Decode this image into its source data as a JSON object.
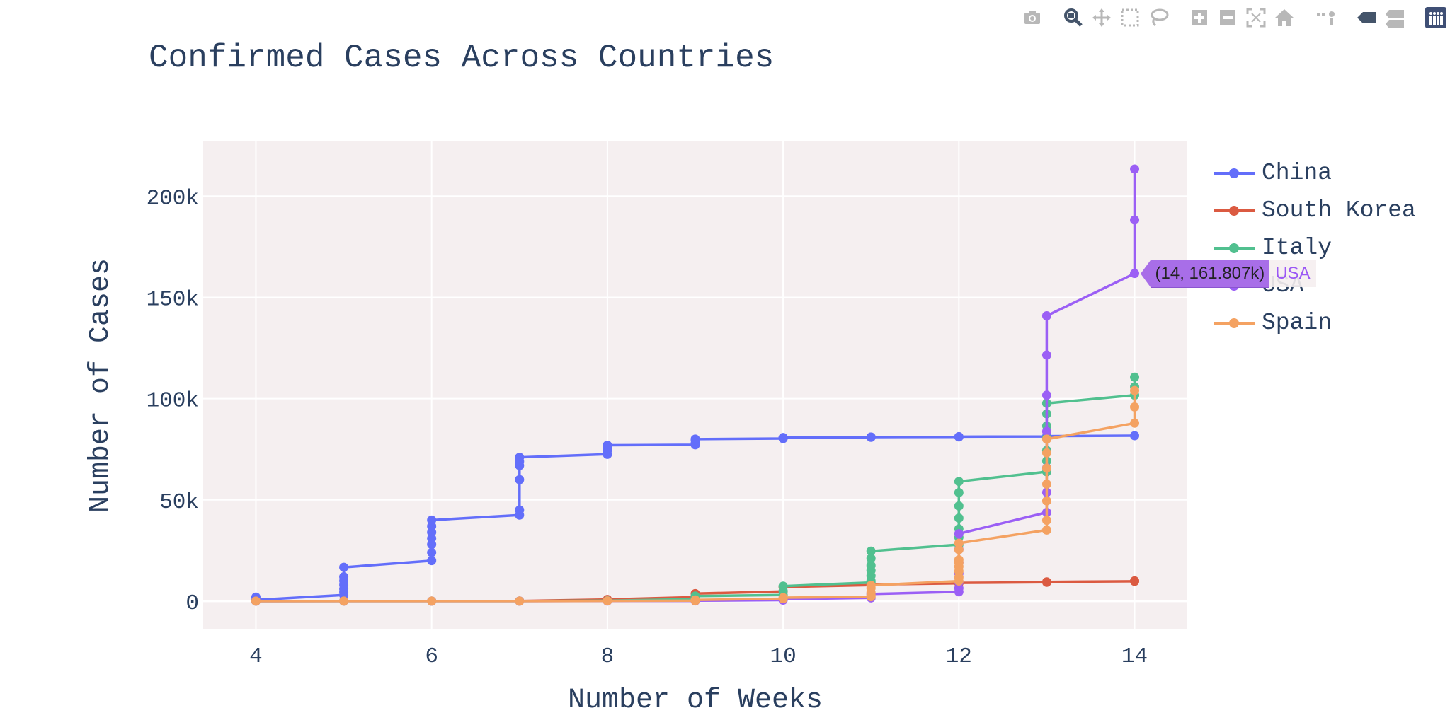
{
  "modebar": {
    "buttons": [
      {
        "name": "camera-icon",
        "title": "Download plot as a png"
      },
      {
        "name": "zoom-icon",
        "title": "Zoom"
      },
      {
        "name": "pan-icon",
        "title": "Pan"
      },
      {
        "name": "box-select-icon",
        "title": "Box Select"
      },
      {
        "name": "lasso-select-icon",
        "title": "Lasso Select"
      },
      {
        "name": "zoom-in-icon",
        "title": "Zoom in"
      },
      {
        "name": "zoom-out-icon",
        "title": "Zoom out"
      },
      {
        "name": "autoscale-icon",
        "title": "Autoscale"
      },
      {
        "name": "reset-axes-icon",
        "title": "Reset axes"
      },
      {
        "name": "spike-lines-icon",
        "title": "Toggle Spike Lines"
      },
      {
        "name": "hover-closest-icon",
        "title": "Show closest data on hover"
      },
      {
        "name": "hover-compare-icon",
        "title": "Compare data on hover"
      },
      {
        "name": "plotly-logo-icon",
        "title": "Produced with Plotly"
      }
    ]
  },
  "chart_data": {
    "type": "line",
    "title": "Confirmed Cases Across Countries",
    "xlabel": "Number of Weeks",
    "ylabel": "Number of Cases",
    "xlim": [
      3.4,
      14.6
    ],
    "ylim": [
      -14000,
      227000
    ],
    "xticks": [
      4,
      6,
      8,
      10,
      12,
      14
    ],
    "yticks": [
      0,
      50000,
      100000,
      150000,
      200000
    ],
    "yticklabels": [
      "0",
      "50k",
      "100k",
      "150k",
      "200k"
    ],
    "grid": true,
    "legend_position": "right",
    "plot_bgcolor": "#f5eff0",
    "series": [
      {
        "name": "China",
        "color": "#636efa",
        "points": [
          [
            4,
            2000
          ],
          [
            4,
            600
          ],
          [
            5,
            3000
          ],
          [
            5,
            4500
          ],
          [
            5,
            6000
          ],
          [
            5,
            8000
          ],
          [
            5,
            10000
          ],
          [
            5,
            12000
          ],
          [
            5,
            16700
          ],
          [
            6,
            20000
          ],
          [
            6,
            24000
          ],
          [
            6,
            28000
          ],
          [
            6,
            31000
          ],
          [
            6,
            34000
          ],
          [
            6,
            37000
          ],
          [
            6,
            40000
          ],
          [
            7,
            42500
          ],
          [
            7,
            45000
          ],
          [
            7,
            60000
          ],
          [
            7,
            67000
          ],
          [
            7,
            69000
          ],
          [
            7,
            71000
          ],
          [
            8,
            72500
          ],
          [
            8,
            74500
          ],
          [
            8,
            75500
          ],
          [
            8,
            77000
          ],
          [
            9,
            77200
          ],
          [
            9,
            78000
          ],
          [
            9,
            79500
          ],
          [
            9,
            80000
          ],
          [
            10,
            80300
          ],
          [
            10,
            80600
          ],
          [
            10,
            80800
          ],
          [
            11,
            80900
          ],
          [
            11,
            81000
          ],
          [
            11,
            81000
          ],
          [
            12,
            81100
          ],
          [
            12,
            81200
          ],
          [
            13,
            81300
          ],
          [
            13,
            81500
          ],
          [
            14,
            81700
          ]
        ]
      },
      {
        "name": "South Korea",
        "color": "#db5a41",
        "points": [
          [
            4,
            20
          ],
          [
            5,
            30
          ],
          [
            6,
            30
          ],
          [
            7,
            50
          ],
          [
            8,
            800
          ],
          [
            9,
            2000
          ],
          [
            9,
            3700
          ],
          [
            10,
            4800
          ],
          [
            10,
            7000
          ],
          [
            11,
            7900
          ],
          [
            11,
            8200
          ],
          [
            12,
            8800
          ],
          [
            12,
            9000
          ],
          [
            13,
            9300
          ],
          [
            13,
            9500
          ],
          [
            14,
            9800
          ],
          [
            14,
            10000
          ]
        ]
      },
      {
        "name": "Italy",
        "color": "#51c08f",
        "points": [
          [
            4,
            0
          ],
          [
            5,
            3
          ],
          [
            6,
            3
          ],
          [
            7,
            3
          ],
          [
            8,
            200
          ],
          [
            9,
            1000
          ],
          [
            9,
            1700
          ],
          [
            9,
            2500
          ],
          [
            10,
            3000
          ],
          [
            10,
            5000
          ],
          [
            10,
            7400
          ],
          [
            11,
            9200
          ],
          [
            11,
            10000
          ],
          [
            11,
            12500
          ],
          [
            11,
            15100
          ],
          [
            11,
            17600
          ],
          [
            11,
            21100
          ],
          [
            11,
            24700
          ],
          [
            12,
            27900
          ],
          [
            12,
            31500
          ],
          [
            12,
            35700
          ],
          [
            12,
            41000
          ],
          [
            12,
            47000
          ],
          [
            12,
            53600
          ],
          [
            12,
            59100
          ],
          [
            13,
            63900
          ],
          [
            13,
            69200
          ],
          [
            13,
            74400
          ],
          [
            13,
            80600
          ],
          [
            13,
            86500
          ],
          [
            13,
            92500
          ],
          [
            13,
            97700
          ],
          [
            14,
            101700
          ],
          [
            14,
            105800
          ],
          [
            14,
            110600
          ]
        ]
      },
      {
        "name": "USA",
        "color": "#9b5ff5",
        "points": [
          [
            4,
            0
          ],
          [
            5,
            10
          ],
          [
            6,
            15
          ],
          [
            7,
            15
          ],
          [
            8,
            60
          ],
          [
            9,
            100
          ],
          [
            9,
            200
          ],
          [
            10,
            500
          ],
          [
            10,
            1000
          ],
          [
            11,
            1600
          ],
          [
            11,
            3500
          ],
          [
            12,
            4600
          ],
          [
            12,
            6400
          ],
          [
            12,
            9400
          ],
          [
            12,
            13700
          ],
          [
            12,
            19100
          ],
          [
            12,
            25500
          ],
          [
            12,
            33300
          ],
          [
            13,
            43800
          ],
          [
            13,
            53700
          ],
          [
            13,
            65800
          ],
          [
            13,
            83800
          ],
          [
            13,
            101700
          ],
          [
            13,
            121500
          ],
          [
            13,
            140900
          ],
          [
            14,
            161807
          ],
          [
            14,
            188200
          ],
          [
            14,
            213400
          ]
        ]
      },
      {
        "name": "Spain",
        "color": "#f4a262",
        "points": [
          [
            4,
            0
          ],
          [
            5,
            2
          ],
          [
            6,
            2
          ],
          [
            7,
            2
          ],
          [
            8,
            100
          ],
          [
            9,
            200
          ],
          [
            9,
            600
          ],
          [
            10,
            1200
          ],
          [
            10,
            1700
          ],
          [
            11,
            2200
          ],
          [
            11,
            3000
          ],
          [
            11,
            4200
          ],
          [
            11,
            6400
          ],
          [
            11,
            7800
          ],
          [
            12,
            9900
          ],
          [
            12,
            11800
          ],
          [
            12,
            14800
          ],
          [
            12,
            17100
          ],
          [
            12,
            19100
          ],
          [
            12,
            20400
          ],
          [
            12,
            25400
          ],
          [
            12,
            28600
          ],
          [
            13,
            35100
          ],
          [
            13,
            39900
          ],
          [
            13,
            49500
          ],
          [
            13,
            57800
          ],
          [
            13,
            65700
          ],
          [
            13,
            73200
          ],
          [
            13,
            80000
          ],
          [
            14,
            87900
          ],
          [
            14,
            95900
          ],
          [
            14,
            104000
          ]
        ]
      }
    ],
    "hover": {
      "series": "USA",
      "x": 14,
      "y": 161807,
      "text": "(14, 161.807k)",
      "name": "USA"
    }
  }
}
